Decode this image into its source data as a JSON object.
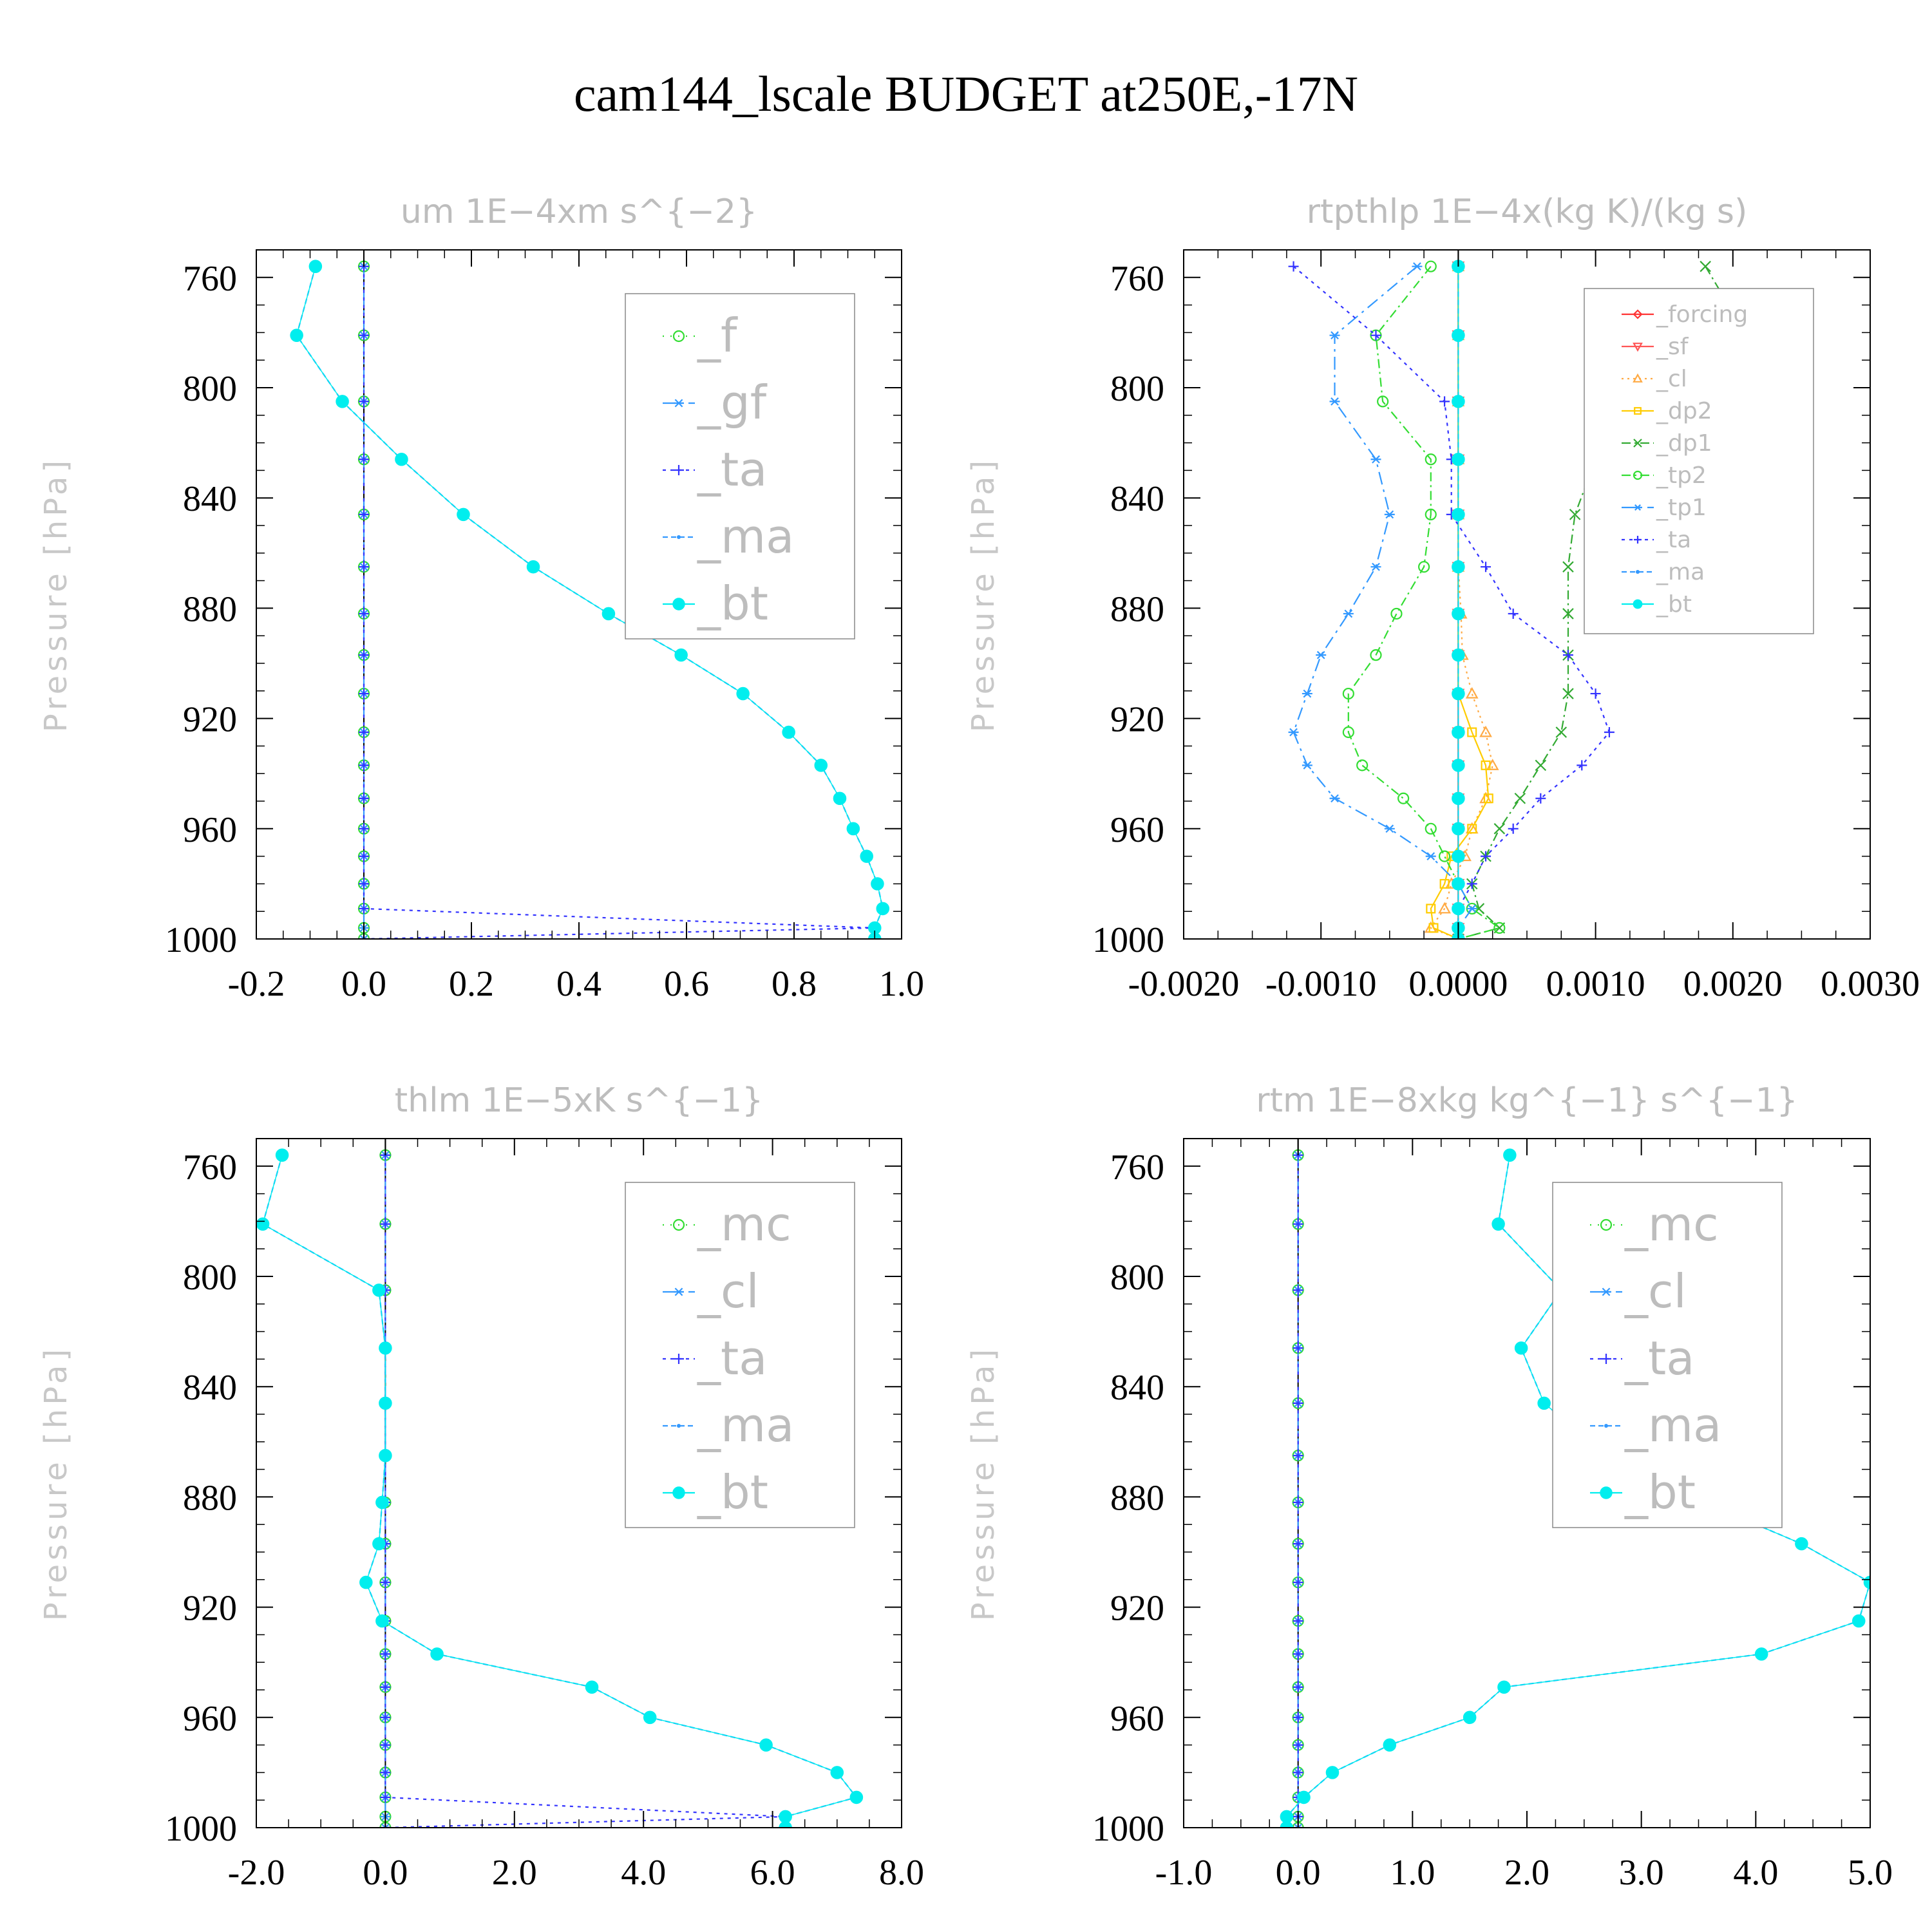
{
  "figure": {
    "title": "cam144_lscale  BUDGET at250E,-17N"
  },
  "chart_data": [
    {
      "type": "line",
      "title": "um   1E−4xm s^{−2}",
      "ylabel": "Pressure [hPa]",
      "xlim": [
        -0.2,
        1.0
      ],
      "ylim": [
        1000,
        750
      ],
      "xticks": [
        -0.2,
        0.0,
        0.2,
        0.4,
        0.6,
        0.8,
        1.0
      ],
      "xtick_labels": [
        "-0.2",
        "0.0",
        "0.2",
        "0.4",
        "0.6",
        "0.8",
        "1.0"
      ],
      "yticks": [
        760,
        800,
        840,
        880,
        920,
        960,
        1000
      ],
      "ytick_labels": [
        "760",
        "800",
        "840",
        "880",
        "920",
        "960",
        "1000"
      ],
      "legend_size": "large",
      "levels": [
        756,
        781,
        805,
        826,
        846,
        865,
        882,
        897,
        911,
        925,
        937,
        949,
        960,
        970,
        980,
        989,
        996,
        1000
      ],
      "series": [
        {
          "name": "_f",
          "color": "#33dd33",
          "marker": "circle",
          "dash": "2,10",
          "values": [
            0,
            0,
            0,
            0,
            0,
            0,
            0,
            0,
            0,
            0,
            0,
            0,
            0,
            0,
            0,
            0,
            0,
            0
          ]
        },
        {
          "name": "_gf",
          "color": "#3399ff",
          "marker": "asterisk",
          "dash": "20,8,4,8",
          "values": [
            0,
            0,
            0,
            0,
            0,
            0,
            0,
            0,
            0,
            0,
            0,
            0,
            0,
            0,
            0,
            0,
            0,
            0
          ]
        },
        {
          "name": "_ta",
          "color": "#3333ff",
          "marker": "plus",
          "dash": "5,7",
          "values": [
            0,
            0,
            0,
            0,
            0,
            0,
            0,
            0,
            0,
            0,
            0,
            0,
            0,
            0,
            0,
            0,
            0.95,
            0
          ]
        },
        {
          "name": "_ma",
          "color": "#3399ff",
          "marker": "dot",
          "dash": "8,5",
          "values": [
            -0.09,
            -0.125,
            -0.04,
            0.07,
            0.185,
            0.315,
            0.455,
            0.59,
            0.705,
            0.79,
            0.85,
            0.885,
            0.91,
            0.935,
            0.955,
            0.965,
            0.95,
            0.95
          ]
        },
        {
          "name": "_bt",
          "color": "#00eeee",
          "marker": "filled",
          "dash": "",
          "values": [
            -0.09,
            -0.125,
            -0.04,
            0.07,
            0.185,
            0.315,
            0.455,
            0.59,
            0.705,
            0.79,
            0.85,
            0.885,
            0.91,
            0.935,
            0.955,
            0.965,
            0.95,
            0.95
          ]
        }
      ]
    },
    {
      "type": "line",
      "title": "rtpthlp   1E−4x(kg K)/(kg s)",
      "ylabel": "Pressure [hPa]",
      "xlim": [
        -0.002,
        0.003
      ],
      "ylim": [
        1000,
        750
      ],
      "xticks": [
        -0.002,
        -0.001,
        0.0,
        0.001,
        0.002,
        0.003
      ],
      "xtick_labels": [
        "-0.0020",
        "-0.0010",
        "0.0000",
        "0.0010",
        "0.0020",
        "0.0030"
      ],
      "yticks": [
        760,
        800,
        840,
        880,
        920,
        960,
        1000
      ],
      "ytick_labels": [
        "760",
        "800",
        "840",
        "880",
        "920",
        "960",
        "1000"
      ],
      "legend_size": "small",
      "levels": [
        756,
        781,
        805,
        826,
        846,
        865,
        882,
        897,
        911,
        925,
        937,
        949,
        960,
        970,
        980,
        989,
        996,
        1000
      ],
      "series": [
        {
          "name": "_forcing",
          "color": "#ff3333",
          "marker": "diamond",
          "dash": "",
          "values": [
            0,
            0,
            0,
            0,
            0,
            0,
            0,
            0,
            0,
            0,
            0,
            0,
            0,
            0,
            0,
            0,
            0,
            0
          ]
        },
        {
          "name": "_sf",
          "color": "#ff5555",
          "marker": "tri-down",
          "dash": "",
          "values": [
            0,
            0,
            0,
            0,
            0,
            0,
            0,
            0,
            0,
            0,
            0,
            0,
            0,
            0,
            0,
            0,
            0,
            0
          ]
        },
        {
          "name": "_cl",
          "color": "#ffaa44",
          "marker": "tri-up",
          "dash": "3,6",
          "values": [
            0,
            0,
            0,
            0,
            0,
            0,
            2e-05,
            3e-05,
            0.0001,
            0.0002,
            0.00025,
            0.0002,
            0.0001,
            5e-05,
            -5e-05,
            -0.0001,
            -0.0002,
            0
          ]
        },
        {
          "name": "_dp2",
          "color": "#ffcc00",
          "marker": "square",
          "dash": "",
          "values": [
            0,
            0,
            0,
            0,
            0,
            0,
            0,
            0,
            0,
            0.0001,
            0.0002,
            0.00022,
            0.0001,
            -5e-05,
            -0.0001,
            -0.0002,
            -0.00018,
            0
          ]
        },
        {
          "name": "_dp1",
          "color": "#33aa33",
          "marker": "x",
          "dash": "14,6,3,6",
          "values": [
            0.0018,
            0.0021,
            0.0015,
            0.001,
            0.00085,
            0.0008,
            0.0008,
            0.0008,
            0.0008,
            0.00075,
            0.0006,
            0.00045,
            0.0003,
            0.0002,
            0.0001,
            0.00015,
            0.0003,
            0
          ]
        },
        {
          "name": "_tp2",
          "color": "#33dd33",
          "marker": "circle",
          "dash": "14,6,3,6",
          "values": [
            -0.0002,
            -0.0006,
            -0.00055,
            -0.0002,
            -0.0002,
            -0.00025,
            -0.00045,
            -0.0006,
            -0.0008,
            -0.0008,
            -0.0007,
            -0.0004,
            -0.0002,
            -0.0001,
            0,
            0.0001,
            0.0003,
            0
          ]
        },
        {
          "name": "_tp1",
          "color": "#3399ff",
          "marker": "asterisk",
          "dash": "20,8,4,8",
          "values": [
            -0.0003,
            -0.0009,
            -0.0009,
            -0.0006,
            -0.0005,
            -0.0006,
            -0.0008,
            -0.001,
            -0.0011,
            -0.0012,
            -0.0011,
            -0.0009,
            -0.0005,
            -0.0002,
            0,
            0.0001,
            0,
            0
          ]
        },
        {
          "name": "_ta",
          "color": "#3333ff",
          "marker": "plus",
          "dash": "5,7",
          "values": [
            -0.0012,
            -0.0006,
            -0.0001,
            -5e-05,
            -5e-05,
            0.0002,
            0.0004,
            0.0008,
            0.001,
            0.0011,
            0.0009,
            0.0006,
            0.0004,
            0.0002,
            0.0001,
            0,
            0,
            0
          ]
        },
        {
          "name": "_ma",
          "color": "#3399ff",
          "marker": "dot",
          "dash": "8,5",
          "values": [
            0,
            0,
            0,
            0,
            0,
            0,
            0,
            0,
            0,
            0,
            0,
            0,
            0,
            0,
            0,
            0,
            0,
            0
          ]
        },
        {
          "name": "_bt",
          "color": "#00eeee",
          "marker": "filled",
          "dash": "",
          "values": [
            0,
            0,
            0,
            0,
            0,
            0,
            0,
            0,
            0,
            0,
            0,
            0,
            0,
            0,
            0,
            0,
            0,
            0
          ]
        }
      ]
    },
    {
      "type": "line",
      "title": "thlm   1E−5xK s^{−1}",
      "ylabel": "Pressure [hPa]",
      "xlim": [
        -2.0,
        8.0
      ],
      "ylim": [
        1000,
        750
      ],
      "xticks": [
        -2.0,
        0.0,
        2.0,
        4.0,
        6.0,
        8.0
      ],
      "xtick_labels": [
        "-2.0",
        "0.0",
        "2.0",
        "4.0",
        "6.0",
        "8.0"
      ],
      "yticks": [
        760,
        800,
        840,
        880,
        920,
        960,
        1000
      ],
      "ytick_labels": [
        "760",
        "800",
        "840",
        "880",
        "920",
        "960",
        "1000"
      ],
      "legend_size": "large",
      "levels": [
        756,
        781,
        805,
        826,
        846,
        865,
        882,
        897,
        911,
        925,
        937,
        949,
        960,
        970,
        980,
        989,
        996,
        1000
      ],
      "series": [
        {
          "name": "_mc",
          "color": "#33dd33",
          "marker": "circle",
          "dash": "2,10",
          "values": [
            0,
            0,
            0,
            0,
            0,
            0,
            0,
            0,
            0,
            0,
            0,
            0,
            0,
            0,
            0,
            0,
            0,
            0
          ]
        },
        {
          "name": "_cl",
          "color": "#3399ff",
          "marker": "asterisk",
          "dash": "20,8,4,8",
          "values": [
            0,
            0,
            0,
            0,
            0,
            0,
            0,
            0,
            0,
            0,
            0,
            0,
            0,
            0,
            0,
            0,
            0,
            0
          ]
        },
        {
          "name": "_ta",
          "color": "#3333ff",
          "marker": "plus",
          "dash": "5,7",
          "values": [
            0,
            0,
            0,
            0,
            0,
            0,
            0,
            0,
            0,
            0,
            0,
            0,
            0,
            0,
            0,
            0,
            6.2,
            0
          ]
        },
        {
          "name": "_ma",
          "color": "#3399ff",
          "marker": "dot",
          "dash": "8,5",
          "values": [
            -1.6,
            -1.9,
            -0.1,
            0,
            0,
            0,
            -0.05,
            -0.1,
            -0.3,
            -0.05,
            0.8,
            3.2,
            4.1,
            5.9,
            7.0,
            7.3,
            6.2,
            6.2
          ]
        },
        {
          "name": "_bt",
          "color": "#00eeee",
          "marker": "filled",
          "dash": "",
          "values": [
            -1.6,
            -1.9,
            -0.1,
            0,
            0,
            0,
            -0.05,
            -0.1,
            -0.3,
            -0.05,
            0.8,
            3.2,
            4.1,
            5.9,
            7.0,
            7.3,
            6.2,
            6.2
          ]
        }
      ]
    },
    {
      "type": "line",
      "title": "rtm   1E−8xkg kg^{−1} s^{−1}",
      "ylabel": "Pressure [hPa]",
      "xlim": [
        -1.0,
        5.0
      ],
      "ylim": [
        1000,
        750
      ],
      "xticks": [
        -1.0,
        0.0,
        1.0,
        2.0,
        3.0,
        4.0,
        5.0
      ],
      "xtick_labels": [
        "-1.0",
        "0.0",
        "1.0",
        "2.0",
        "3.0",
        "4.0",
        "5.0"
      ],
      "yticks": [
        760,
        800,
        840,
        880,
        920,
        960,
        1000
      ],
      "ytick_labels": [
        "760",
        "800",
        "840",
        "880",
        "920",
        "960",
        "1000"
      ],
      "legend_size": "large",
      "levels": [
        756,
        781,
        805,
        826,
        846,
        865,
        882,
        897,
        911,
        925,
        937,
        949,
        960,
        970,
        980,
        989,
        996,
        1000
      ],
      "series": [
        {
          "name": "_mc",
          "color": "#33dd33",
          "marker": "circle",
          "dash": "2,10",
          "values": [
            0,
            0,
            0,
            0,
            0,
            0,
            0,
            0,
            0,
            0,
            0,
            0,
            0,
            0,
            0,
            0,
            0,
            0
          ]
        },
        {
          "name": "_cl",
          "color": "#3399ff",
          "marker": "asterisk",
          "dash": "20,8,4,8",
          "values": [
            0,
            0,
            0,
            0,
            0,
            0,
            0,
            0,
            0,
            0,
            0,
            0,
            0,
            0,
            0,
            0,
            0,
            0
          ]
        },
        {
          "name": "_ta",
          "color": "#3333ff",
          "marker": "plus",
          "dash": "5,7",
          "values": [
            0,
            0,
            0,
            0,
            0,
            0,
            0,
            0,
            0,
            0,
            0,
            0,
            0,
            0,
            0,
            0,
            0,
            0
          ]
        },
        {
          "name": "_ma",
          "color": "#3399ff",
          "marker": "dot",
          "dash": "8,5",
          "values": [
            1.85,
            1.75,
            2.3,
            1.95,
            2.15,
            2.7,
            3.55,
            4.4,
            5.0,
            4.9,
            4.05,
            1.8,
            1.5,
            0.8,
            0.3,
            0.05,
            -0.1,
            -0.1
          ]
        },
        {
          "name": "_bt",
          "color": "#00eeee",
          "marker": "filled",
          "dash": "",
          "values": [
            1.85,
            1.75,
            2.3,
            1.95,
            2.15,
            2.7,
            3.55,
            4.4,
            5.0,
            4.9,
            4.05,
            1.8,
            1.5,
            0.8,
            0.3,
            0.05,
            -0.1,
            -0.1
          ]
        }
      ]
    }
  ]
}
